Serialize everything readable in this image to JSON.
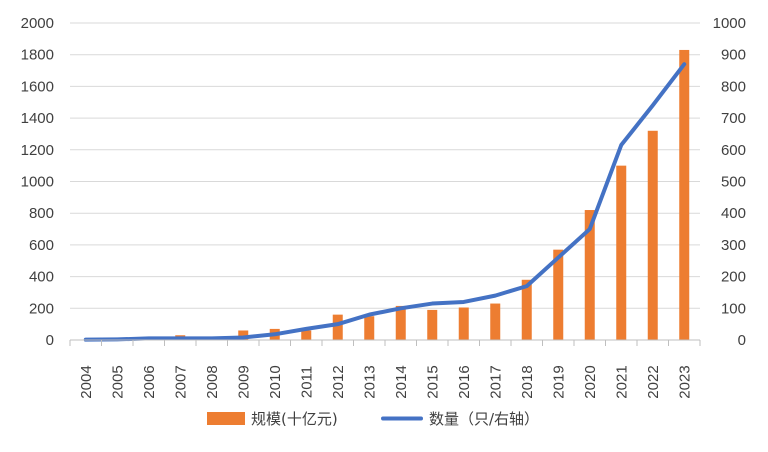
{
  "chart_data": {
    "type": "bar+line",
    "categories": [
      "2004",
      "2005",
      "2006",
      "2007",
      "2008",
      "2009",
      "2010",
      "2011",
      "2012",
      "2013",
      "2014",
      "2015",
      "2016",
      "2017",
      "2018",
      "2019",
      "2020",
      "2021",
      "2022",
      "2023"
    ],
    "series": [
      {
        "name": "规模(十亿元)",
        "type": "bar",
        "axis": "left",
        "color": "#ED7D31",
        "values": [
          1,
          2,
          10,
          30,
          20,
          60,
          70,
          60,
          160,
          150,
          215,
          190,
          205,
          230,
          380,
          570,
          820,
          1100,
          1320,
          1830
        ]
      },
      {
        "name": "数量（只/右轴）",
        "type": "line",
        "axis": "right",
        "color": "#4472C4",
        "values": [
          1,
          2,
          5,
          5,
          5,
          8,
          18,
          35,
          50,
          80,
          100,
          115,
          120,
          140,
          170,
          260,
          350,
          615,
          740,
          870
        ]
      }
    ],
    "y_left": {
      "min": 0,
      "max": 2000,
      "step": 200,
      "ticks": [
        "0",
        "200",
        "400",
        "600",
        "800",
        "1000",
        "1200",
        "1400",
        "1600",
        "1800",
        "2000"
      ]
    },
    "y_right": {
      "min": 0,
      "max": 1000,
      "step": 100,
      "ticks": [
        "0",
        "100",
        "200",
        "300",
        "400",
        "500",
        "600",
        "700",
        "800",
        "900",
        "1000"
      ]
    },
    "grid": true,
    "legend": "bottom",
    "title": "",
    "xlabel": "",
    "ylabel": ""
  }
}
